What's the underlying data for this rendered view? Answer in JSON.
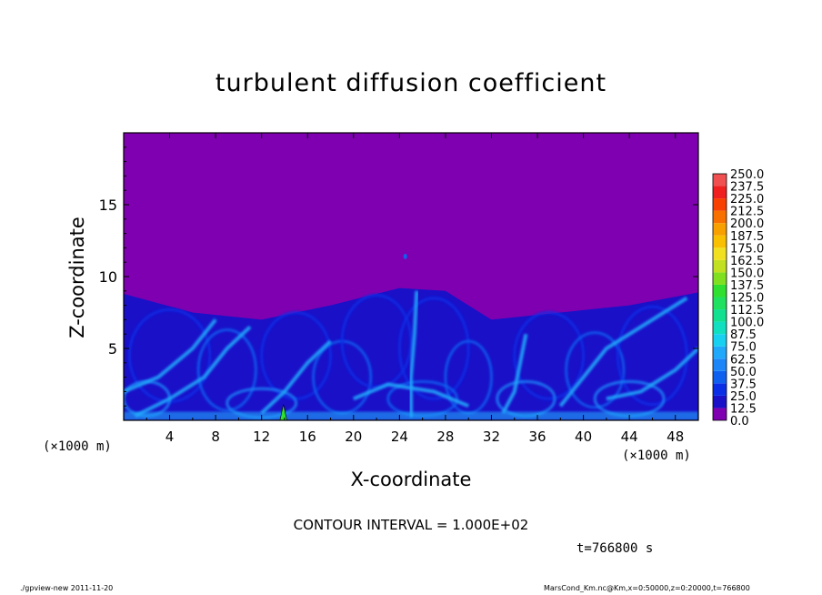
{
  "title": "turbulent diffusion coefficient",
  "x_unit_left": "(×1000 m)",
  "x_unit_right": "(×1000 m)",
  "contour_interval": "CONTOUR INTERVAL = 1.000E+02",
  "time_label": "t=766800 s",
  "footer_left": "./gpview-new   2011-11-20",
  "footer_right": "MarsCond_Km.nc@Km,x=0:50000,z=0:20000,t=766800",
  "colors": {
    "background_field": "#7f00b0",
    "frame": "#000000"
  },
  "chart_data": {
    "type": "heatmap",
    "title": "turbulent diffusion coefficient",
    "xlabel": "X-coordinate",
    "ylabel": "Z-coordinate",
    "x_unit": "(×1000 m)",
    "xlim": [
      0,
      50
    ],
    "ylim": [
      0,
      20
    ],
    "x_ticks": [
      "4",
      "8",
      "12",
      "16",
      "20",
      "24",
      "28",
      "32",
      "36",
      "40",
      "44",
      "48"
    ],
    "y_ticks": [
      "5",
      "10",
      "15"
    ],
    "colorbar": {
      "levels": [
        "0.0",
        "12.5",
        "25.0",
        "37.5",
        "50.0",
        "62.5",
        "75.0",
        "87.5",
        "100.0",
        "112.5",
        "125.0",
        "137.5",
        "150.0",
        "162.5",
        "175.0",
        "187.5",
        "200.0",
        "212.5",
        "225.0",
        "237.5",
        "250.0"
      ],
      "colors": [
        "#7f00b0",
        "#1a10c8",
        "#0a2ee6",
        "#1060f0",
        "#1c86f8",
        "#20a8fa",
        "#18d0f0",
        "#10e0c0",
        "#10e090",
        "#20e060",
        "#30e030",
        "#80e020",
        "#c0e020",
        "#f0e020",
        "#f8c000",
        "#f8a000",
        "#f87000",
        "#f84000",
        "#f02020",
        "#f05050"
      ]
    },
    "field_description_levels": {
      "upper_region_value": "0.0",
      "turbulent_layer_top_z": [
        8.8,
        7.5,
        7.0,
        8.0,
        9.2,
        9.0,
        7.0,
        7.5,
        8.0,
        8.9
      ],
      "turbulent_layer_top_x": [
        0,
        6,
        12,
        18,
        24,
        28,
        32,
        38,
        44,
        50
      ]
    }
  }
}
